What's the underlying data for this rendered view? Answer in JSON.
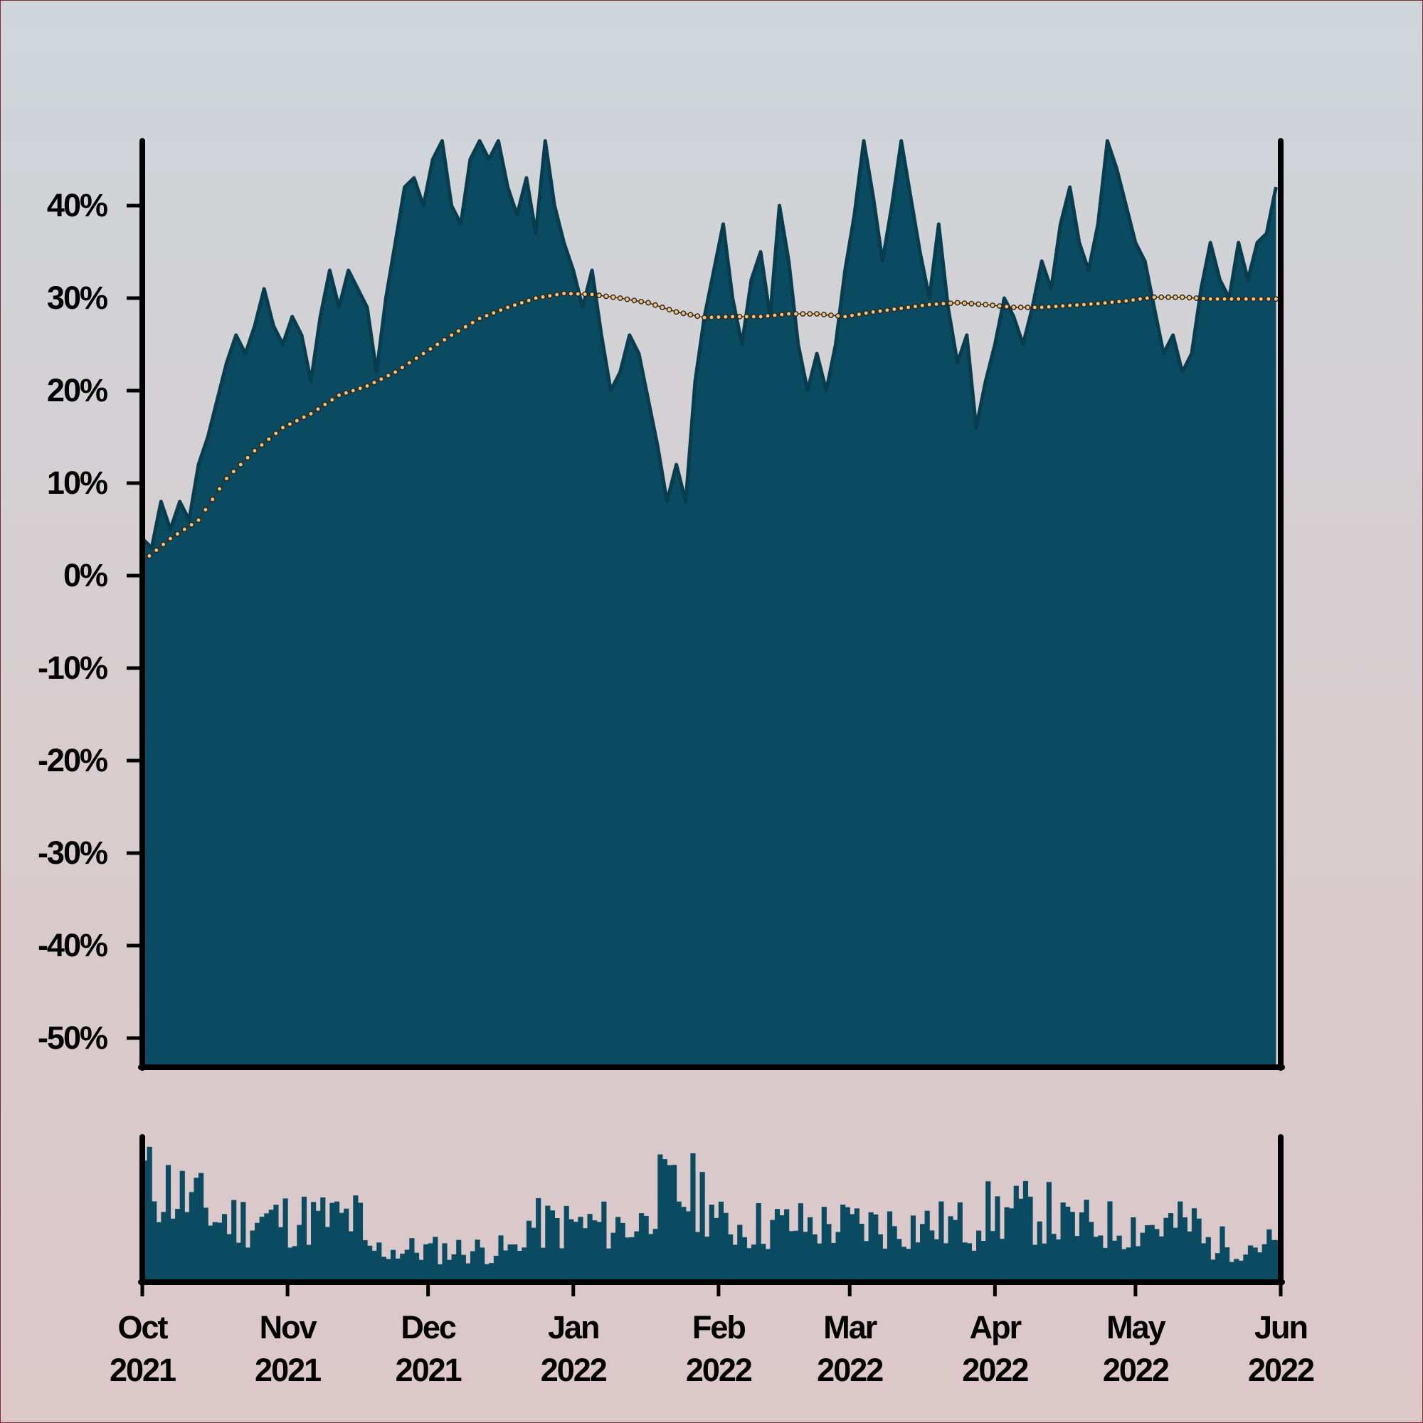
{
  "chart_data": {
    "type": "area",
    "title": "",
    "xlabel": "",
    "ylabel": "",
    "xlim": [
      "2021-10-01",
      "2022-06-01"
    ],
    "ylim": [
      -53,
      47
    ],
    "y_ticks": [
      40,
      30,
      20,
      10,
      0,
      -10,
      -20,
      -30,
      -40,
      -50
    ],
    "y_tick_labels": [
      "40%",
      "30%",
      "20%",
      "10%",
      "0%",
      "-10%",
      "-20%",
      "-30%",
      "-40%",
      "-50%"
    ],
    "x_ticks": [
      {
        "date": "2021-10-01",
        "month": "Oct",
        "year": "2021"
      },
      {
        "date": "2021-11-01",
        "month": "Nov",
        "year": "2021"
      },
      {
        "date": "2021-12-01",
        "month": "Dec",
        "year": "2021"
      },
      {
        "date": "2022-01-01",
        "month": "Jan",
        "year": "2022"
      },
      {
        "date": "2022-02-01",
        "month": "Feb",
        "year": "2022"
      },
      {
        "date": "2022-03-01",
        "month": "Mar",
        "year": "2022"
      },
      {
        "date": "2022-04-01",
        "month": "Apr",
        "year": "2022"
      },
      {
        "date": "2022-05-01",
        "month": "May",
        "year": "2022"
      },
      {
        "date": "2022-06-01",
        "month": "Jun",
        "year": "2022"
      }
    ],
    "grid": false,
    "legend": "none",
    "colors": {
      "area_fill": "#0a4b62",
      "area_line": "#083c4f",
      "moving_average": "#f0c27a",
      "axis": "#000000"
    },
    "series": [
      {
        "kind": "area",
        "points": [
          [
            "2021-10-01",
            4
          ],
          [
            "2021-10-03",
            3
          ],
          [
            "2021-10-05",
            8
          ],
          [
            "2021-10-07",
            5
          ],
          [
            "2021-10-09",
            8
          ],
          [
            "2021-10-11",
            6
          ],
          [
            "2021-10-13",
            12
          ],
          [
            "2021-10-15",
            15
          ],
          [
            "2021-10-17",
            19
          ],
          [
            "2021-10-19",
            23
          ],
          [
            "2021-10-21",
            26
          ],
          [
            "2021-10-23",
            24
          ],
          [
            "2021-10-25",
            27
          ],
          [
            "2021-10-27",
            31
          ],
          [
            "2021-10-29",
            27
          ],
          [
            "2021-10-31",
            25
          ],
          [
            "2021-11-02",
            28
          ],
          [
            "2021-11-04",
            26
          ],
          [
            "2021-11-06",
            21
          ],
          [
            "2021-11-08",
            28
          ],
          [
            "2021-11-10",
            33
          ],
          [
            "2021-11-12",
            29
          ],
          [
            "2021-11-14",
            33
          ],
          [
            "2021-11-16",
            31
          ],
          [
            "2021-11-18",
            29
          ],
          [
            "2021-11-20",
            22
          ],
          [
            "2021-11-22",
            30
          ],
          [
            "2021-11-24",
            36
          ],
          [
            "2021-11-26",
            42
          ],
          [
            "2021-11-28",
            43
          ],
          [
            "2021-11-30",
            40
          ],
          [
            "2021-12-02",
            45
          ],
          [
            "2021-12-04",
            47
          ],
          [
            "2021-12-06",
            40
          ],
          [
            "2021-12-08",
            38
          ],
          [
            "2021-12-10",
            45
          ],
          [
            "2021-12-12",
            47
          ],
          [
            "2021-12-14",
            45
          ],
          [
            "2021-12-16",
            47
          ],
          [
            "2021-12-18",
            42
          ],
          [
            "2021-12-20",
            39
          ],
          [
            "2021-12-22",
            43
          ],
          [
            "2021-12-24",
            37
          ],
          [
            "2021-12-26",
            47
          ],
          [
            "2021-12-28",
            40
          ],
          [
            "2021-12-30",
            36
          ],
          [
            "2022-01-01",
            33
          ],
          [
            "2022-01-03",
            29
          ],
          [
            "2022-01-05",
            33
          ],
          [
            "2022-01-07",
            26
          ],
          [
            "2022-01-09",
            20
          ],
          [
            "2022-01-11",
            22
          ],
          [
            "2022-01-13",
            26
          ],
          [
            "2022-01-15",
            24
          ],
          [
            "2022-01-17",
            19
          ],
          [
            "2022-01-19",
            14
          ],
          [
            "2022-01-21",
            8
          ],
          [
            "2022-01-23",
            12
          ],
          [
            "2022-01-25",
            8
          ],
          [
            "2022-01-27",
            21
          ],
          [
            "2022-01-29",
            28
          ],
          [
            "2022-01-31",
            33
          ],
          [
            "2022-02-02",
            38
          ],
          [
            "2022-02-04",
            30
          ],
          [
            "2022-02-06",
            25
          ],
          [
            "2022-02-08",
            32
          ],
          [
            "2022-02-10",
            35
          ],
          [
            "2022-02-12",
            28
          ],
          [
            "2022-02-14",
            40
          ],
          [
            "2022-02-16",
            34
          ],
          [
            "2022-02-18",
            25
          ],
          [
            "2022-02-20",
            20
          ],
          [
            "2022-02-22",
            24
          ],
          [
            "2022-02-24",
            20
          ],
          [
            "2022-02-26",
            25
          ],
          [
            "2022-02-28",
            33
          ],
          [
            "2022-03-02",
            39
          ],
          [
            "2022-03-04",
            47
          ],
          [
            "2022-03-06",
            41
          ],
          [
            "2022-03-08",
            34
          ],
          [
            "2022-03-10",
            40
          ],
          [
            "2022-03-12",
            47
          ],
          [
            "2022-03-14",
            41
          ],
          [
            "2022-03-16",
            35
          ],
          [
            "2022-03-18",
            30
          ],
          [
            "2022-03-20",
            38
          ],
          [
            "2022-03-22",
            29
          ],
          [
            "2022-03-24",
            23
          ],
          [
            "2022-03-26",
            26
          ],
          [
            "2022-03-28",
            16
          ],
          [
            "2022-03-30",
            21
          ],
          [
            "2022-04-01",
            25
          ],
          [
            "2022-04-03",
            30
          ],
          [
            "2022-04-05",
            28
          ],
          [
            "2022-04-07",
            25
          ],
          [
            "2022-04-09",
            29
          ],
          [
            "2022-04-11",
            34
          ],
          [
            "2022-04-13",
            31
          ],
          [
            "2022-04-15",
            38
          ],
          [
            "2022-04-17",
            42
          ],
          [
            "2022-04-19",
            36
          ],
          [
            "2022-04-21",
            33
          ],
          [
            "2022-04-23",
            38
          ],
          [
            "2022-04-25",
            47
          ],
          [
            "2022-04-27",
            44
          ],
          [
            "2022-04-29",
            40
          ],
          [
            "2022-05-01",
            36
          ],
          [
            "2022-05-03",
            34
          ],
          [
            "2022-05-05",
            29
          ],
          [
            "2022-05-07",
            24
          ],
          [
            "2022-05-09",
            26
          ],
          [
            "2022-05-11",
            22
          ],
          [
            "2022-05-13",
            24
          ],
          [
            "2022-05-15",
            31
          ],
          [
            "2022-05-17",
            36
          ],
          [
            "2022-05-19",
            32
          ],
          [
            "2022-05-21",
            30
          ],
          [
            "2022-05-23",
            36
          ],
          [
            "2022-05-25",
            32
          ],
          [
            "2022-05-27",
            36
          ],
          [
            "2022-05-29",
            37
          ],
          [
            "2022-05-31",
            42
          ]
        ]
      },
      {
        "kind": "moving_average",
        "points": [
          [
            "2021-10-01",
            1.5
          ],
          [
            "2021-10-07",
            4
          ],
          [
            "2021-10-13",
            6
          ],
          [
            "2021-10-19",
            10.5
          ],
          [
            "2021-10-25",
            13.5
          ],
          [
            "2021-10-31",
            16
          ],
          [
            "2021-11-06",
            17.5
          ],
          [
            "2021-11-12",
            19.5
          ],
          [
            "2021-11-18",
            20.5
          ],
          [
            "2021-11-24",
            22
          ],
          [
            "2021-11-30",
            24
          ],
          [
            "2021-12-06",
            26
          ],
          [
            "2021-12-12",
            27.8
          ],
          [
            "2021-12-18",
            29
          ],
          [
            "2021-12-24",
            30
          ],
          [
            "2021-12-30",
            30.5
          ],
          [
            "2022-01-05",
            30.4
          ],
          [
            "2022-01-11",
            30
          ],
          [
            "2022-01-17",
            29.5
          ],
          [
            "2022-01-23",
            28.5
          ],
          [
            "2022-01-29",
            27.9
          ],
          [
            "2022-02-04",
            28
          ],
          [
            "2022-02-10",
            28
          ],
          [
            "2022-02-16",
            28.3
          ],
          [
            "2022-02-22",
            28.3
          ],
          [
            "2022-02-28",
            28
          ],
          [
            "2022-03-06",
            28.5
          ],
          [
            "2022-03-12",
            28.9
          ],
          [
            "2022-03-18",
            29.3
          ],
          [
            "2022-03-24",
            29.5
          ],
          [
            "2022-03-30",
            29.3
          ],
          [
            "2022-04-05",
            29
          ],
          [
            "2022-04-11",
            29
          ],
          [
            "2022-04-17",
            29.2
          ],
          [
            "2022-04-23",
            29.4
          ],
          [
            "2022-04-29",
            29.7
          ],
          [
            "2022-05-05",
            30.1
          ],
          [
            "2022-05-11",
            30.1
          ],
          [
            "2022-05-17",
            29.9
          ],
          [
            "2022-05-23",
            29.9
          ],
          [
            "2022-05-31",
            29.9
          ]
        ]
      }
    ],
    "volume_panel": {
      "kind": "bar",
      "seed": 11
    }
  }
}
